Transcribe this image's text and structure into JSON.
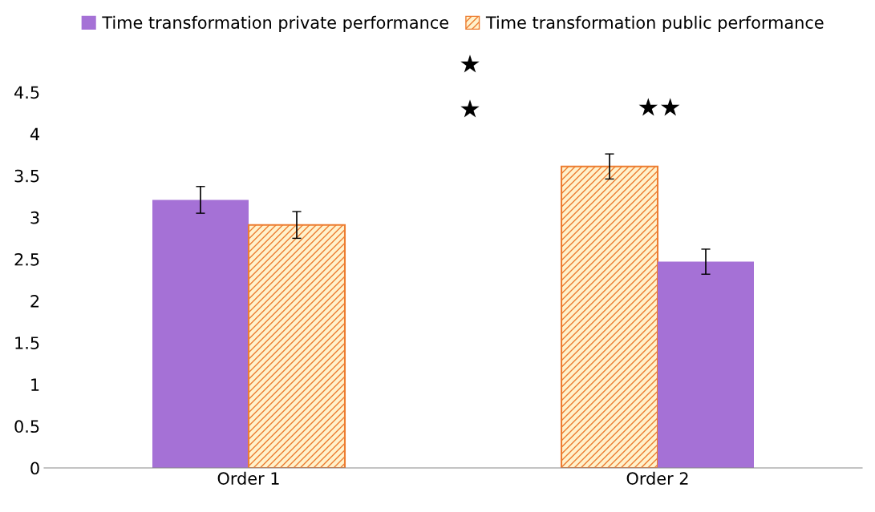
{
  "chart_data": {
    "type": "bar",
    "categories": [
      "Order 1",
      "Order 2"
    ],
    "series": [
      {
        "name": "Time transformation private performance",
        "color": "#a571d6",
        "values": [
          3.21,
          2.47
        ],
        "errors": [
          0.16,
          0.15
        ]
      },
      {
        "name": "Time transformation public performance",
        "color": "#ed7d31",
        "values": [
          2.91,
          3.61
        ],
        "errors": [
          0.16,
          0.15
        ]
      }
    ],
    "ylim": [
      0,
      4.5
    ],
    "yticks": [
      0,
      0.5,
      1,
      1.5,
      2,
      2.5,
      3,
      3.5,
      4,
      4.5
    ],
    "annotations": [
      "★",
      "★",
      "★★"
    ],
    "legend": "top",
    "grid": false
  }
}
